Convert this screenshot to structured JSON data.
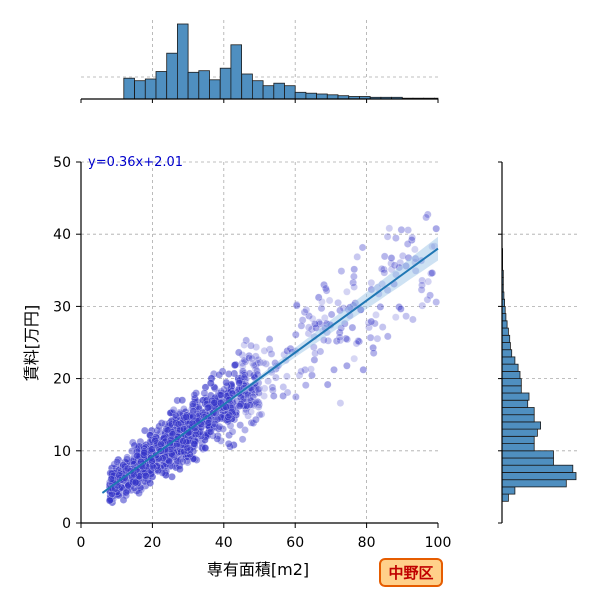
{
  "chart_data": {
    "type": "scatter",
    "title": "",
    "xlabel": "専有面積[m2]",
    "ylabel": "賃料[万円]",
    "xlim": [
      0,
      100
    ],
    "ylim": [
      0,
      50
    ],
    "xticks": [
      "0",
      "20",
      "40",
      "60",
      "80",
      "100"
    ],
    "yticks": [
      "0",
      "10",
      "20",
      "30",
      "40",
      "50"
    ],
    "grid": true,
    "regression": {
      "equation": "y=0.36x+2.01",
      "slope": 0.36,
      "intercept": 2.01,
      "x_range": [
        6,
        100
      ]
    },
    "badge": "中野区",
    "colors": {
      "points": "#3535c8",
      "line": "#1f77b4",
      "bars": "#4f8fc0",
      "equation": "#0000cc",
      "badge_fill": "#ffd08a",
      "badge_border": "#e65c00"
    },
    "x_histogram": {
      "bin_edges": [
        0,
        3,
        6,
        9,
        12,
        15,
        18,
        21,
        24,
        27,
        30,
        33,
        36,
        39,
        42,
        45,
        48,
        51,
        54,
        57,
        60,
        63,
        66,
        69,
        72,
        75,
        78,
        81,
        84,
        87,
        90,
        93,
        96,
        99,
        100
      ],
      "counts": [
        0,
        0,
        0,
        0,
        25,
        22,
        24,
        33,
        55,
        90,
        32,
        34,
        23,
        37,
        65,
        30,
        22,
        16,
        19,
        16,
        8,
        7,
        6,
        5,
        4,
        3,
        3,
        2,
        2,
        2,
        1,
        1,
        1,
        1
      ]
    },
    "y_histogram": {
      "bin_edges": [
        3,
        4,
        5,
        6,
        7,
        8,
        9,
        10,
        11,
        12,
        13,
        14,
        15,
        16,
        17,
        18,
        19,
        20,
        21,
        22,
        23,
        24,
        25,
        26,
        27,
        28,
        29,
        30,
        31,
        32,
        33,
        34,
        35,
        36,
        37,
        38,
        39
      ],
      "counts": [
        10,
        20,
        100,
        115,
        110,
        80,
        80,
        50,
        50,
        55,
        60,
        50,
        50,
        40,
        42,
        30,
        30,
        28,
        25,
        20,
        15,
        13,
        12,
        10,
        8,
        6,
        5,
        4,
        3,
        2,
        2,
        2,
        1,
        1,
        1,
        0
      ]
    }
  }
}
